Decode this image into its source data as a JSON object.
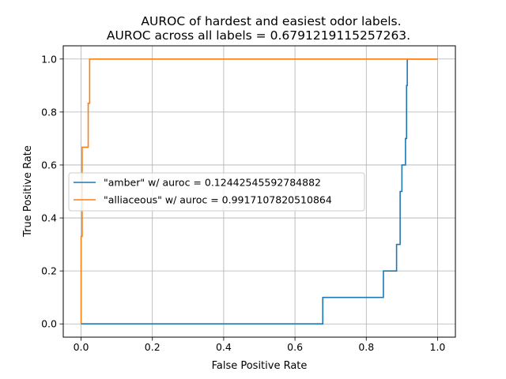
{
  "chart_data": {
    "type": "line",
    "title": "AUROC of hardest and easiest odor labels.",
    "subtitle": "AUROC across all labels = 0.6791219115257263.",
    "xlabel": "False Positive Rate",
    "ylabel": "True Positive Rate",
    "xlim": [
      -0.05,
      1.05
    ],
    "ylim": [
      -0.05,
      1.05
    ],
    "xticks": [
      0.0,
      0.2,
      0.4,
      0.6,
      0.8,
      1.0
    ],
    "xtick_labels": [
      "0.0",
      "0.2",
      "0.4",
      "0.6",
      "0.8",
      "1.0"
    ],
    "yticks": [
      0.0,
      0.2,
      0.4,
      0.6,
      0.8,
      1.0
    ],
    "ytick_labels": [
      "0.0",
      "0.2",
      "0.4",
      "0.6",
      "0.8",
      "1.0"
    ],
    "grid": true,
    "legend_position": "center-left",
    "series": [
      {
        "name": "\"amber\" w/ auroc = 0.12442545592784882",
        "color": "#1f77b4",
        "x": [
          0.0,
          0.678,
          0.678,
          0.848,
          0.848,
          0.885,
          0.885,
          0.895,
          0.895,
          0.9,
          0.9,
          0.91,
          0.91,
          0.913,
          0.913,
          0.915,
          0.915,
          0.92,
          0.92,
          1.0
        ],
        "y": [
          0.0,
          0.0,
          0.1,
          0.1,
          0.2,
          0.2,
          0.3,
          0.3,
          0.5,
          0.5,
          0.6,
          0.6,
          0.7,
          0.7,
          0.9,
          0.9,
          1.0,
          1.0,
          1.0,
          1.0
        ]
      },
      {
        "name": "\"alliaceous\" w/ auroc = 0.9917107820510864",
        "color": "#ff7f0e",
        "x": [
          0.0,
          0.0,
          0.0,
          0.003,
          0.003,
          0.02,
          0.02,
          0.024,
          0.024,
          1.0
        ],
        "y": [
          0.0,
          0.33,
          0.33,
          0.33,
          0.667,
          0.667,
          0.833,
          0.833,
          1.0,
          1.0
        ]
      }
    ]
  }
}
